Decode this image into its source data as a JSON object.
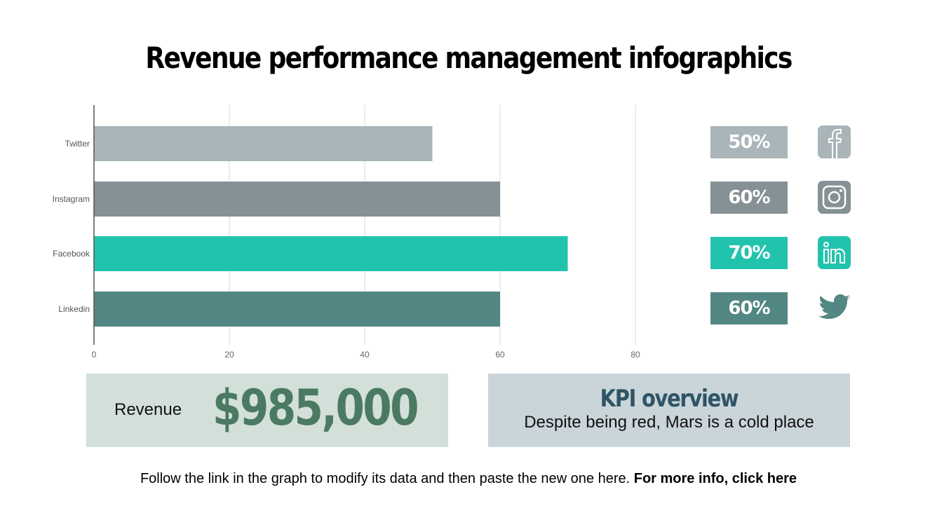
{
  "title": "Revenue performance management infographics",
  "chart_data": {
    "type": "bar",
    "orientation": "horizontal",
    "categories": [
      "Twitter",
      "Instagram",
      "Facebook",
      "Linkedin"
    ],
    "values": [
      50,
      60,
      70,
      60
    ],
    "colors": [
      "#a9b5b8",
      "#859194",
      "#22c3ac",
      "#528783"
    ],
    "xlim": [
      0,
      80
    ],
    "xticks": [
      "0",
      "20",
      "40",
      "60",
      "80"
    ],
    "grid": true,
    "title": "",
    "xlabel": "",
    "ylabel": ""
  },
  "percent_labels": [
    {
      "text": "50%",
      "color": "#a9b5b8",
      "icon": "facebook-icon"
    },
    {
      "text": "60%",
      "color": "#859194",
      "icon": "instagram-icon"
    },
    {
      "text": "70%",
      "color": "#22c3ac",
      "icon": "linkedin-icon"
    },
    {
      "text": "60%",
      "color": "#528783",
      "icon": "twitter-icon"
    }
  ],
  "revenue": {
    "label": "Revenue",
    "value": "$985,000"
  },
  "kpi": {
    "title": "KPI overview",
    "text": "Despite being red, Mars is a cold place"
  },
  "footer": {
    "text": "Follow the link in the graph to modify its data and then paste the new one here. ",
    "link": "For more info, click here"
  }
}
